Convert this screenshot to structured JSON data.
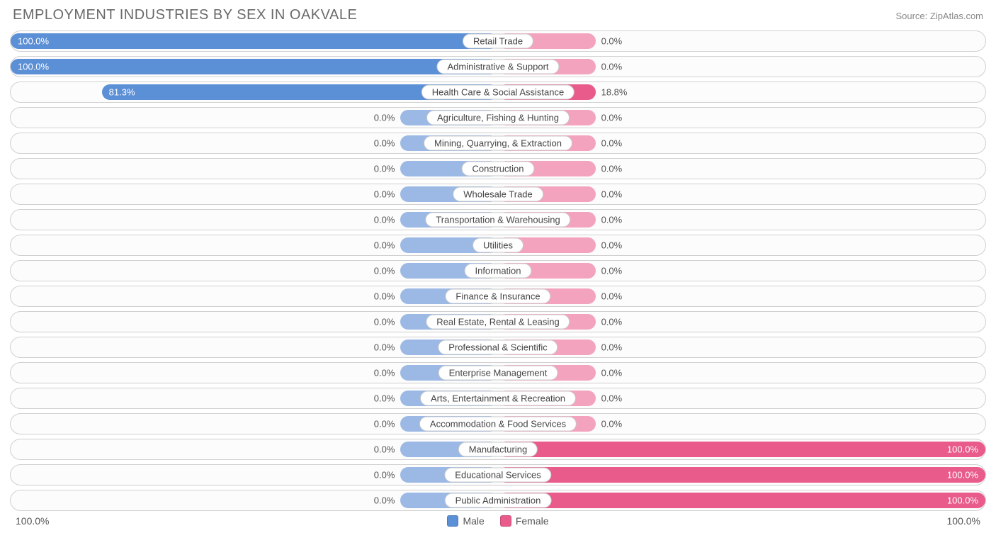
{
  "title": "EMPLOYMENT INDUSTRIES BY SEX IN OAKVALE",
  "source": "Source: ZipAtlas.com",
  "colors": {
    "male_bar": "#5b8fd6",
    "male_bar_zero": "#9bb9e4",
    "female_bar": "#e85b8a",
    "female_bar_zero": "#f4a3bf",
    "row_border": "#d0d0d0",
    "text_inside": "#ffffff",
    "text_outside": "#555555",
    "title_color": "#6a6a6a",
    "source_color": "#888888",
    "background": "#ffffff"
  },
  "chart": {
    "type": "diverging-bar",
    "min_bar_pct": 20,
    "axis_left": "100.0%",
    "axis_right": "100.0%",
    "legend": [
      {
        "label": "Male",
        "color": "#5b8fd6"
      },
      {
        "label": "Female",
        "color": "#e85b8a"
      }
    ],
    "rows": [
      {
        "category": "Retail Trade",
        "male": 100.0,
        "female": 0.0,
        "male_label": "100.0%",
        "female_label": "0.0%"
      },
      {
        "category": "Administrative & Support",
        "male": 100.0,
        "female": 0.0,
        "male_label": "100.0%",
        "female_label": "0.0%"
      },
      {
        "category": "Health Care & Social Assistance",
        "male": 81.3,
        "female": 18.8,
        "male_label": "81.3%",
        "female_label": "18.8%"
      },
      {
        "category": "Agriculture, Fishing & Hunting",
        "male": 0.0,
        "female": 0.0,
        "male_label": "0.0%",
        "female_label": "0.0%"
      },
      {
        "category": "Mining, Quarrying, & Extraction",
        "male": 0.0,
        "female": 0.0,
        "male_label": "0.0%",
        "female_label": "0.0%"
      },
      {
        "category": "Construction",
        "male": 0.0,
        "female": 0.0,
        "male_label": "0.0%",
        "female_label": "0.0%"
      },
      {
        "category": "Wholesale Trade",
        "male": 0.0,
        "female": 0.0,
        "male_label": "0.0%",
        "female_label": "0.0%"
      },
      {
        "category": "Transportation & Warehousing",
        "male": 0.0,
        "female": 0.0,
        "male_label": "0.0%",
        "female_label": "0.0%"
      },
      {
        "category": "Utilities",
        "male": 0.0,
        "female": 0.0,
        "male_label": "0.0%",
        "female_label": "0.0%"
      },
      {
        "category": "Information",
        "male": 0.0,
        "female": 0.0,
        "male_label": "0.0%",
        "female_label": "0.0%"
      },
      {
        "category": "Finance & Insurance",
        "male": 0.0,
        "female": 0.0,
        "male_label": "0.0%",
        "female_label": "0.0%"
      },
      {
        "category": "Real Estate, Rental & Leasing",
        "male": 0.0,
        "female": 0.0,
        "male_label": "0.0%",
        "female_label": "0.0%"
      },
      {
        "category": "Professional & Scientific",
        "male": 0.0,
        "female": 0.0,
        "male_label": "0.0%",
        "female_label": "0.0%"
      },
      {
        "category": "Enterprise Management",
        "male": 0.0,
        "female": 0.0,
        "male_label": "0.0%",
        "female_label": "0.0%"
      },
      {
        "category": "Arts, Entertainment & Recreation",
        "male": 0.0,
        "female": 0.0,
        "male_label": "0.0%",
        "female_label": "0.0%"
      },
      {
        "category": "Accommodation & Food Services",
        "male": 0.0,
        "female": 0.0,
        "male_label": "0.0%",
        "female_label": "0.0%"
      },
      {
        "category": "Manufacturing",
        "male": 0.0,
        "female": 100.0,
        "male_label": "0.0%",
        "female_label": "100.0%"
      },
      {
        "category": "Educational Services",
        "male": 0.0,
        "female": 100.0,
        "male_label": "0.0%",
        "female_label": "100.0%"
      },
      {
        "category": "Public Administration",
        "male": 0.0,
        "female": 100.0,
        "male_label": "0.0%",
        "female_label": "100.0%"
      }
    ]
  }
}
